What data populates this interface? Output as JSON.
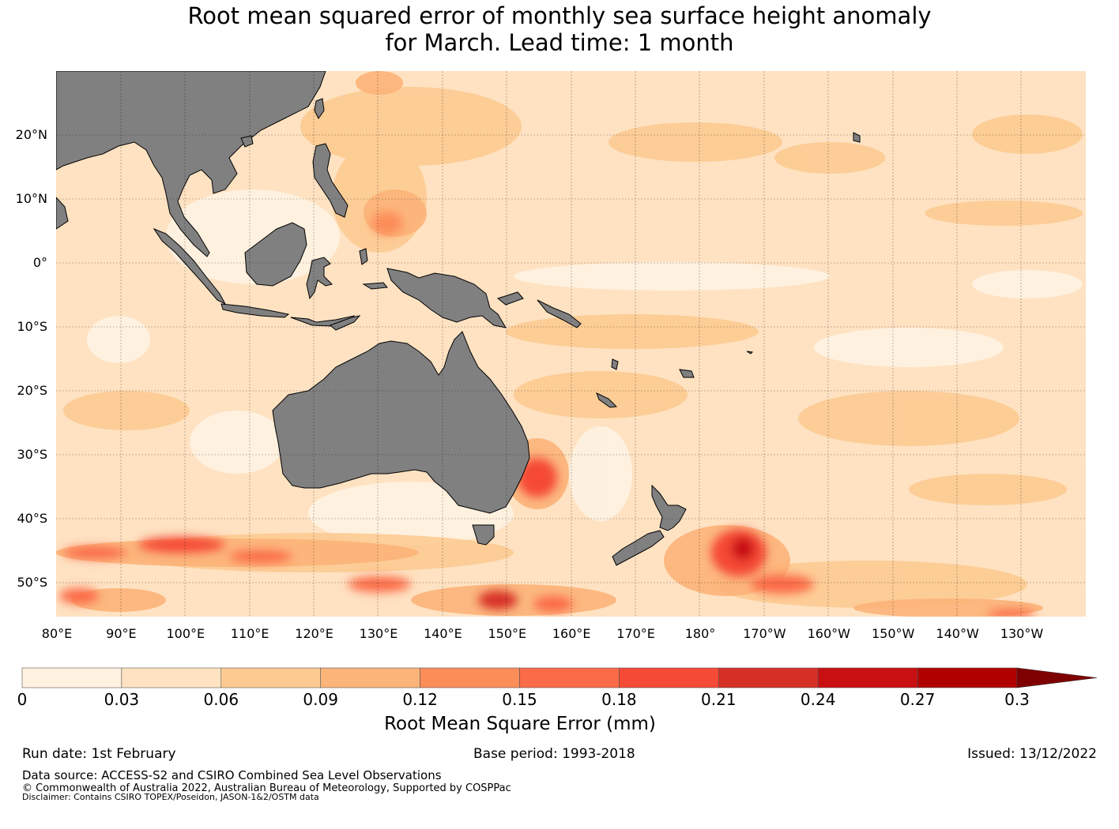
{
  "title": {
    "line1": "Root mean squared error of monthly sea surface height anomaly",
    "line2": "for March. Lead time: 1 month"
  },
  "map": {
    "lat_labels": [
      "20°N",
      "10°N",
      "0°",
      "10°S",
      "20°S",
      "30°S",
      "40°S",
      "50°S"
    ],
    "lon_labels": [
      "80°E",
      "90°E",
      "100°E",
      "110°E",
      "120°E",
      "130°E",
      "140°E",
      "150°E",
      "160°E",
      "170°E",
      "180°",
      "170°W",
      "160°W",
      "150°W",
      "140°W",
      "130°W"
    ],
    "land_color": "#808080",
    "ocean_base_color": "#fee2c2"
  },
  "colorbar": {
    "colors": [
      "#fff1e0",
      "#fee2c2",
      "#fdcb92",
      "#fcb479",
      "#fc8d59",
      "#fb6b47",
      "#f54a35",
      "#d73027",
      "#c90f12",
      "#b00000",
      "#7f0000"
    ],
    "ticks": [
      "0",
      "0.03",
      "0.06",
      "0.09",
      "0.12",
      "0.15",
      "0.18",
      "0.21",
      "0.24",
      "0.27",
      "0.3"
    ],
    "label": "Root Mean Square Error (mm)"
  },
  "footer": {
    "run_date": "Run date: 1st February",
    "base_period": "Base period: 1993-2018",
    "issued": "Issued: 13/12/2022",
    "data_source": "Data source: ACCESS-S2 and CSIRO Combined Sea Level Observations",
    "copyright": "© Commonwealth of Australia 2022, Australian Bureau of Meteorology, Supported by COSPPac",
    "disclaimer": "Disclaimer: Contains CSIRO TOPEX/Poseidon, JASON-1&2/OSTM data"
  }
}
